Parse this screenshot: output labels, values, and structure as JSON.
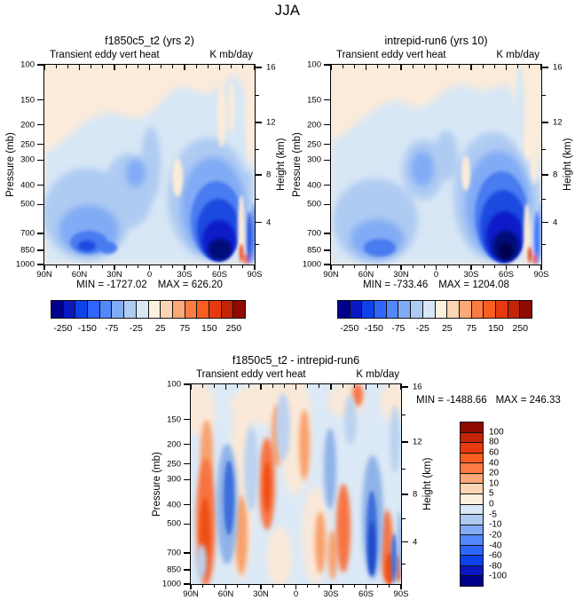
{
  "title": "JJA",
  "axes": {
    "y_left_label": "Pressure (mb)",
    "y_left_ticks": [
      "100",
      "150",
      "200",
      "250",
      "300",
      "400",
      "500",
      "700",
      "850",
      "1000"
    ],
    "y_right_label": "Height (km)",
    "y_right_ticks": [
      "16",
      "12",
      "8",
      "4"
    ],
    "x_ticks": [
      "90N",
      "60N",
      "30N",
      "0",
      "30S",
      "60S",
      "90S"
    ]
  },
  "panels": [
    {
      "title": "f1850c5_t2 (yrs 2)",
      "field_label": "Transient eddy vert heat",
      "units_label": "K mb/day",
      "min_label": "MIN = -1727.02",
      "max_label": "MAX = 626.20"
    },
    {
      "title": "intrepid-run6 (yrs 10)",
      "field_label": "Transient eddy vert heat",
      "units_label": "K mb/day",
      "min_label": "MIN = -733.46",
      "max_label": "MAX = 1204.08"
    },
    {
      "title": "f1850c5_t2 - intrepid-run6",
      "field_label": "Transient eddy vert heat",
      "units_label": "K mb/day",
      "min_label": "MIN = -1488.66",
      "max_label": "MAX = 246.33"
    }
  ],
  "colorbars": {
    "horizontal": {
      "labels": [
        "-250",
        "-150",
        "-75",
        "-25",
        "25",
        "75",
        "150",
        "250"
      ],
      "colors": [
        "#00008B",
        "#0918C0",
        "#0F41EB",
        "#2E66FF",
        "#5288FA",
        "#82ABF5",
        "#AECBF2",
        "#D8E7F5",
        "#FDF1DE",
        "#FCD5B5",
        "#FCA877",
        "#FB7B42",
        "#F95D20",
        "#E73A10",
        "#C42405",
        "#8F0A00"
      ]
    },
    "vertical": {
      "labels": [
        "100",
        "80",
        "60",
        "40",
        "20",
        "10",
        "5",
        "0",
        "-5",
        "-10",
        "-20",
        "-40",
        "-60",
        "-80",
        "-100"
      ],
      "colors": [
        "#8F0A00",
        "#C42405",
        "#E73A10",
        "#F95D20",
        "#FB7B42",
        "#FCA877",
        "#FCD5B5",
        "#FDF1DE",
        "#D8E7F5",
        "#AECBF2",
        "#82ABF5",
        "#5288FA",
        "#2E66FF",
        "#0F41EB",
        "#0918C0",
        "#00008B"
      ]
    }
  },
  "chart_data": [
    {
      "type": "heatmap",
      "title": "f1850c5_t2 (yrs 2)",
      "season": "JJA",
      "variable": "Transient eddy vert heat",
      "units": "K mb/day",
      "x_axis": {
        "ticks": [
          "90N",
          "60N",
          "30N",
          "0",
          "30S",
          "60S",
          "90S"
        ]
      },
      "y_axis": {
        "label": "Pressure (mb)",
        "scale": "log",
        "ticks": [
          100,
          150,
          200,
          250,
          300,
          400,
          500,
          700,
          850,
          1000
        ]
      },
      "y2_axis": {
        "label": "Height (km)",
        "ticks": [
          16,
          12,
          8,
          4
        ]
      },
      "min": -1727.02,
      "max": 626.2,
      "colorbar_tick_labels": [
        -250,
        -150,
        -75,
        -25,
        25,
        75,
        150,
        250
      ],
      "legend_position": "below",
      "grid": false,
      "description": "Filled contours, blue = negative. Weak positive (tan) band above ~150 mb. Moderate blue storm-track cell near 60N-40N from 400-1000 mb with bright core near 850 mb. Dominant dark-navy cell 30S-75S from 300-1000 mb, darkest near 45S-65S at 700-1000 mb. Narrow tan/red slivers near 80S-90S at low levels."
    },
    {
      "type": "heatmap",
      "title": "intrepid-run6 (yrs 10)",
      "season": "JJA",
      "variable": "Transient eddy vert heat",
      "units": "K mb/day",
      "x_axis": {
        "ticks": [
          "90N",
          "60N",
          "30N",
          "0",
          "30S",
          "60S",
          "90S"
        ]
      },
      "y_axis": {
        "label": "Pressure (mb)",
        "scale": "log",
        "ticks": [
          100,
          150,
          200,
          250,
          300,
          400,
          500,
          700,
          850,
          1000
        ]
      },
      "y2_axis": {
        "label": "Height (km)",
        "ticks": [
          16,
          12,
          8,
          4
        ]
      },
      "min": -733.46,
      "max": 1204.08,
      "colorbar_tick_labels": [
        -250,
        -150,
        -75,
        -25,
        25,
        75,
        150,
        250
      ],
      "legend_position": "below",
      "grid": false,
      "description": "Same layout as left panel. Northern blue cell slightly weaker; southern dark-navy cell larger and deeper, spanning ~30S-70S, 400-1000 mb. Tan background above 150 mb and over polar caps; mid-level blue patch near 10N 250-400 mb; red slivers near 85S surface."
    },
    {
      "type": "heatmap",
      "title": "f1850c5_t2 - intrepid-run6",
      "season": "JJA",
      "variable": "Transient eddy vert heat",
      "units": "K mb/day",
      "x_axis": {
        "ticks": [
          "90N",
          "60N",
          "30N",
          "0",
          "30S",
          "60S",
          "90S"
        ]
      },
      "y_axis": {
        "label": "Pressure (mb)",
        "scale": "log",
        "ticks": [
          100,
          150,
          200,
          250,
          300,
          400,
          500,
          700,
          850,
          1000
        ]
      },
      "y2_axis": {
        "label": "Height (km)",
        "ticks": [
          16,
          12,
          8,
          4
        ]
      },
      "min": -1488.66,
      "max": 246.33,
      "colorbar_tick_labels": [
        100,
        80,
        60,
        40,
        20,
        10,
        5,
        0,
        -5,
        -10,
        -20,
        -40,
        -60,
        -80,
        -100
      ],
      "legend_position": "right",
      "grid": false,
      "description": "Difference field of alternating narrow vertical red/blue streaks. Strong orange column near 72N (300-1000 mb), strong blue column near 58N, orange near 30N mid-levels, pale near the equator, blue streak near 25S, orange near 40S low levels, strong blue column near 60S (300-1000 mb), mottled red/blue near 70S-90S surface."
    }
  ]
}
